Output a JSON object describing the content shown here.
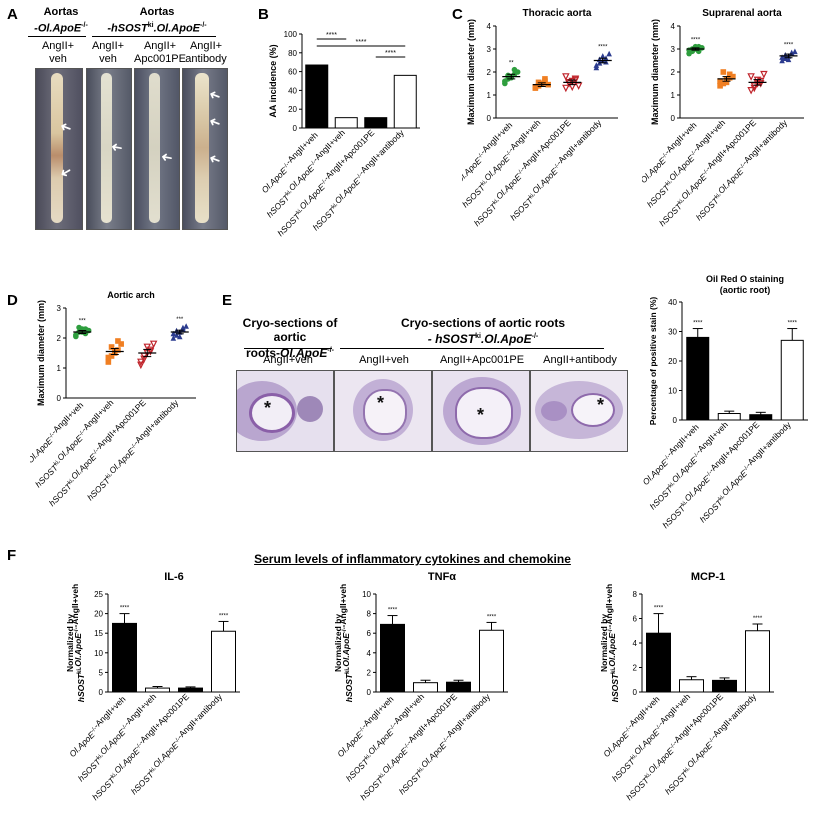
{
  "panels": {
    "A": {
      "letter": "A",
      "header_left": "Aortas",
      "header_left_geno": "-Ol.ApoE",
      "header_left_sup": "-/-",
      "header_right": "Aortas",
      "header_right_geno_1": "-hSOST",
      "header_right_sup_1": "ki",
      "header_right_geno_2": ".Ol.ApoE",
      "header_right_sup_2": "-/-",
      "cols": [
        {
          "line1": "AngII+",
          "line2": "veh"
        },
        {
          "line1": "AngII+",
          "line2": "veh"
        },
        {
          "line1": "AngII+",
          "line2": "Apc001PE"
        },
        {
          "line1": "AngII+",
          "line2": "antibody"
        }
      ],
      "arrow": "➜"
    },
    "B": {
      "letter": "B"
    },
    "C": {
      "letter": "C"
    },
    "D": {
      "letter": "D"
    },
    "E": {
      "letter": "E",
      "title_left_1": "Cryo-sections of aortic",
      "title_left_2": "roots-",
      "title_left_geno": "Ol.ApoE",
      "title_left_sup": "-/-",
      "title_right_1": "Cryo-sections of aortic roots",
      "title_right_2": "- hSOST",
      "title_right_sup_1": "ki",
      "title_right_geno": ".Ol.ApoE",
      "title_right_sup_2": "-/-",
      "cols": [
        "AngII+veh",
        "AngII+veh",
        "AngII+Apc001PE",
        "AngII+antibody"
      ],
      "lumen_mark": "*"
    },
    "F": {
      "letter": "F",
      "title": "Serum levels of inflammatory cytokines and chemokine"
    }
  },
  "groups": [
    "Ol.ApoE-/--AngII+veh",
    "hSOSTki.Ol.ApoE-/--AngII+veh",
    "hSOSTki.Ol.ApoE-/--AngII+Apc001PE",
    "hSOSTki.Ol.ApoE-/--AngII+antibody"
  ],
  "chart_data": [
    {
      "id": "B",
      "type": "bar",
      "title": "",
      "ylabel": "AA incidence (%)",
      "ylim": [
        0,
        100
      ],
      "yticks": [
        0,
        20,
        40,
        60,
        80,
        100
      ],
      "values": [
        67,
        11,
        11,
        56
      ],
      "fills": [
        "#000000",
        "#ffffff",
        "#000000",
        "#ffffff"
      ],
      "significance": [
        {
          "from": 0,
          "to": 1,
          "label": "****"
        },
        {
          "from": 0,
          "to": 3,
          "label": "****"
        },
        {
          "from": 2,
          "to": 3,
          "label": "****"
        }
      ]
    },
    {
      "id": "C1",
      "type": "scatter",
      "title": "Thoracic aorta",
      "ylabel": "Maximum diameter (mm)",
      "ylim": [
        0,
        4
      ],
      "yticks": [
        0,
        1,
        2,
        3,
        4
      ],
      "means": [
        1.8,
        1.45,
        1.55,
        2.5
      ],
      "sems": [
        0.1,
        0.08,
        0.1,
        0.1
      ],
      "points": [
        [
          1.5,
          1.7,
          1.8,
          1.9,
          2.0,
          1.6,
          1.85,
          1.75,
          2.1
        ],
        [
          1.3,
          1.4,
          1.5,
          1.6,
          1.45,
          1.35,
          1.55,
          1.5,
          1.7
        ],
        [
          1.3,
          1.5,
          1.6,
          1.7,
          1.4,
          1.8,
          1.55,
          1.35,
          1.65
        ],
        [
          2.2,
          2.4,
          2.5,
          2.6,
          2.8,
          2.3,
          2.55,
          2.7,
          2.45
        ]
      ],
      "marks": [
        "**",
        "",
        "",
        "****"
      ],
      "colors": [
        "#2e9e3e",
        "#f07f22",
        "#c0242b",
        "#2b3b8f"
      ],
      "shapes": [
        "circle",
        "square",
        "triangle-down",
        "triangle"
      ]
    },
    {
      "id": "C2",
      "type": "scatter",
      "title": "Suprarenal aorta",
      "ylabel": "Maximum diameter (mm)",
      "ylim": [
        0,
        4
      ],
      "yticks": [
        0,
        1,
        2,
        3,
        4
      ],
      "means": [
        3.0,
        1.7,
        1.55,
        2.7
      ],
      "sems": [
        0.05,
        0.1,
        0.12,
        0.08
      ],
      "points": [
        [
          2.8,
          2.9,
          3.0,
          3.1,
          3.05,
          2.95,
          3.0,
          3.1,
          2.9
        ],
        [
          1.4,
          1.5,
          1.7,
          1.9,
          1.8,
          1.6,
          2.0,
          1.55,
          1.75
        ],
        [
          1.2,
          1.4,
          1.5,
          1.6,
          1.9,
          1.8,
          1.3,
          1.65,
          1.5
        ],
        [
          2.5,
          2.6,
          2.7,
          2.8,
          2.9,
          2.65,
          2.75,
          2.55,
          2.85
        ]
      ],
      "marks": [
        "****",
        "",
        "",
        "****"
      ],
      "colors": [
        "#2e9e3e",
        "#f07f22",
        "#c0242b",
        "#2b3b8f"
      ],
      "shapes": [
        "circle",
        "square",
        "triangle-down",
        "triangle"
      ]
    },
    {
      "id": "D",
      "type": "scatter",
      "title": "Aortic arch",
      "ylabel": "Maximum diameter (mm)",
      "ylim": [
        0,
        3
      ],
      "yticks": [
        0,
        1,
        2,
        3
      ],
      "means": [
        2.2,
        1.55,
        1.5,
        2.2
      ],
      "sems": [
        0.05,
        0.1,
        0.12,
        0.06
      ],
      "points": [
        [
          2.1,
          2.2,
          2.3,
          2.15,
          2.25,
          2.05,
          2.35,
          2.2,
          2.3
        ],
        [
          1.2,
          1.4,
          1.5,
          1.6,
          1.8,
          1.35,
          1.7,
          1.55,
          1.9
        ],
        [
          1.1,
          1.3,
          1.5,
          1.6,
          1.8,
          1.2,
          1.4,
          1.7,
          1.55
        ],
        [
          2.0,
          2.1,
          2.2,
          2.3,
          2.4,
          2.15,
          2.25,
          2.05,
          2.35
        ]
      ],
      "marks": [
        "***",
        "",
        "",
        "***"
      ],
      "colors": [
        "#2e9e3e",
        "#f07f22",
        "#c0242b",
        "#2b3b8f"
      ],
      "shapes": [
        "circle",
        "square",
        "triangle-down",
        "triangle"
      ]
    },
    {
      "id": "E",
      "type": "bar",
      "title": "Oil Red O staining\n(aortic root)",
      "ylabel": "Percentage of positive stain (%)",
      "ylim": [
        0,
        40
      ],
      "yticks": [
        0,
        10,
        20,
        30,
        40
      ],
      "values": [
        28,
        2.2,
        1.8,
        27
      ],
      "errors": [
        3,
        0.8,
        0.8,
        4
      ],
      "fills": [
        "#000000",
        "#ffffff",
        "#000000",
        "#ffffff"
      ],
      "marks": [
        "****",
        "",
        "",
        "****"
      ]
    },
    {
      "id": "F1",
      "type": "bar",
      "title": "IL-6",
      "ylabel": "Normalized by hSOSTki.Ol.ApoE-/--AngII+veh",
      "ylim": [
        0,
        25
      ],
      "yticks": [
        0,
        5,
        10,
        15,
        20,
        25
      ],
      "values": [
        17.5,
        1.0,
        1.0,
        15.5
      ],
      "errors": [
        2.5,
        0.4,
        0.3,
        2.5
      ],
      "fills": [
        "#000000",
        "#ffffff",
        "#000000",
        "#ffffff"
      ],
      "marks": [
        "****",
        "",
        "",
        "****"
      ]
    },
    {
      "id": "F2",
      "type": "bar",
      "title": "TNFα",
      "ylabel": "Normalized by hSOSTki.Ol.ApoE-/--AngII+veh",
      "ylim": [
        0,
        10
      ],
      "yticks": [
        0,
        2,
        4,
        6,
        8,
        10
      ],
      "values": [
        6.9,
        0.95,
        1.0,
        6.3
      ],
      "errors": [
        0.9,
        0.25,
        0.2,
        0.8
      ],
      "fills": [
        "#000000",
        "#ffffff",
        "#000000",
        "#ffffff"
      ],
      "marks": [
        "****",
        "",
        "",
        "****"
      ]
    },
    {
      "id": "F3",
      "type": "bar",
      "title": "MCP-1",
      "ylabel": "Normalized by hSOSTki.Ol.ApoE-/--AngII+veh",
      "ylim": [
        0,
        8
      ],
      "yticks": [
        0,
        2,
        4,
        6,
        8
      ],
      "values": [
        4.8,
        1.0,
        0.95,
        5.0
      ],
      "errors": [
        1.6,
        0.25,
        0.2,
        0.55
      ],
      "fills": [
        "#000000",
        "#ffffff",
        "#000000",
        "#ffffff"
      ],
      "marks": [
        "****",
        "",
        "",
        "****"
      ]
    }
  ]
}
